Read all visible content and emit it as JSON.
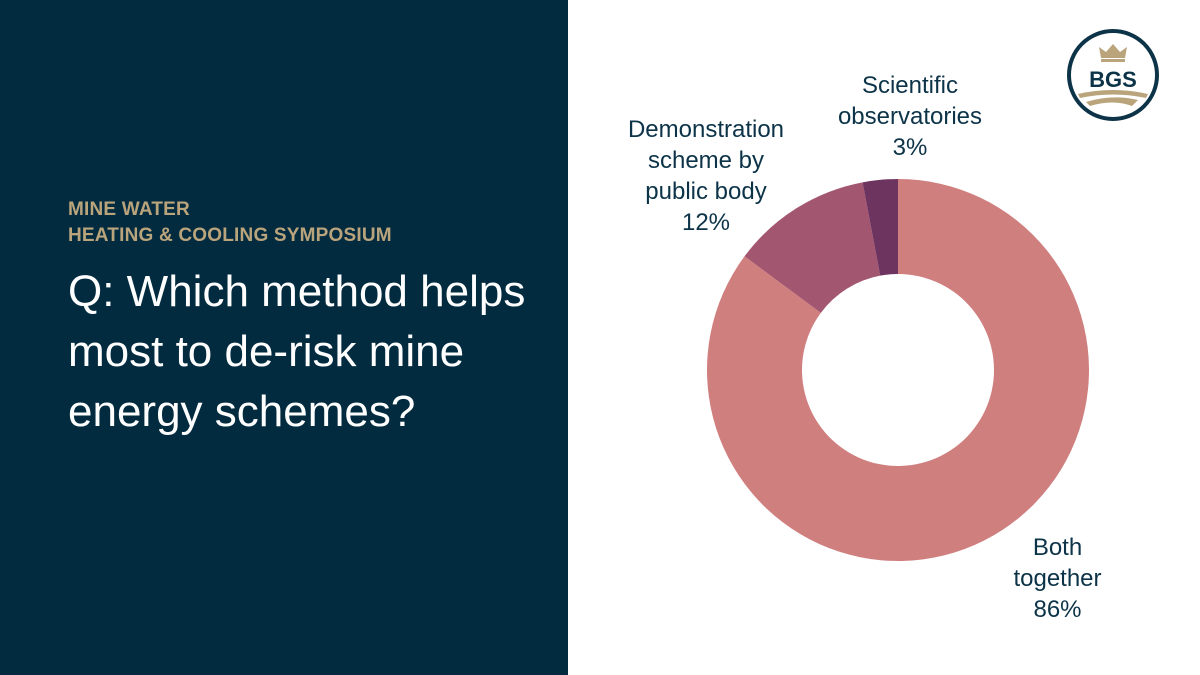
{
  "left_panel": {
    "kicker_line1": "MINE WATER",
    "kicker_line2": "HEATING & COOLING SYMPOSIUM",
    "question": "Q: Which method helps most to de-risk mine energy schemes?",
    "background": "#032b3f",
    "accent": "#b9a47c"
  },
  "logo": {
    "text": "BGS"
  },
  "chart_data": {
    "type": "pie",
    "donut": true,
    "categories": [
      "Both together",
      "Demonstration scheme by public body",
      "Scientific observatories"
    ],
    "values": [
      86,
      12,
      3
    ],
    "unit": "%",
    "colors": [
      "#d07f7f",
      "#a3566f",
      "#6e3460"
    ],
    "labels": [
      {
        "lines": [
          "Both",
          "together",
          "86%"
        ]
      },
      {
        "lines": [
          "Demonstration",
          "scheme by",
          "public body",
          "12%"
        ]
      },
      {
        "lines": [
          "Scientific",
          "observatories",
          "3%"
        ]
      }
    ]
  }
}
